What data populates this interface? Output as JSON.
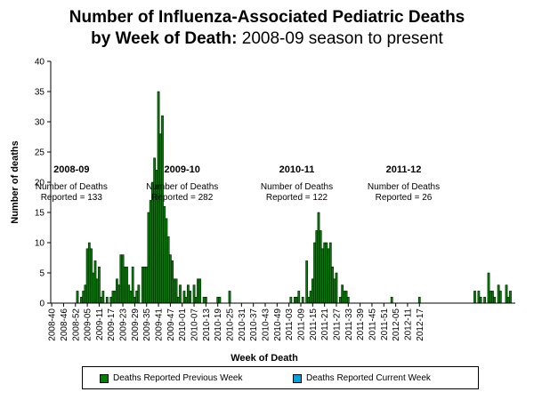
{
  "title": {
    "line1": "Number of Influenza-Associated Pediatric Deaths",
    "line2_bold": "by Week of Death:",
    "line2_rest": "2008-09 season to present"
  },
  "chart_data": {
    "type": "bar",
    "xlabel": "Week of Death",
    "ylabel": "Number of deaths",
    "ylim": [
      0,
      40
    ],
    "yticks": [
      0,
      5,
      10,
      15,
      20,
      25,
      30,
      35,
      40
    ],
    "start_week": "2008-40",
    "tick_labels": [
      "2008-40",
      "2008-46",
      "2008-52",
      "2009-05",
      "2009-11",
      "2009-17",
      "2009-23",
      "2009-29",
      "2009-35",
      "2009-41",
      "2009-47",
      "2010-01",
      "2010-07",
      "2010-13",
      "2010-19",
      "2010-25",
      "2010-31",
      "2010-37",
      "2010-43",
      "2010-49",
      "2011-03",
      "2011-09",
      "2011-15",
      "2011-21",
      "2011-27",
      "2011-33",
      "2011-39",
      "2011-45",
      "2011-51",
      "2012-05",
      "2012-11",
      "2012-17"
    ],
    "series": [
      {
        "name": "Deaths Reported Previous Week",
        "color": "#008000",
        "values": [
          0,
          0,
          0,
          0,
          0,
          0,
          0,
          0,
          0,
          0,
          0,
          0,
          0,
          2,
          0,
          1,
          2,
          3,
          9,
          10,
          9,
          5,
          7,
          4,
          6,
          1,
          2,
          0,
          1,
          0,
          1,
          2,
          2,
          4,
          3,
          8,
          8,
          6,
          6,
          3,
          2,
          6,
          1,
          2,
          3,
          0,
          6,
          6,
          6,
          15,
          17,
          20,
          24,
          22,
          35,
          28,
          31,
          16,
          14,
          11,
          8,
          7,
          4,
          4,
          1,
          3,
          0,
          2,
          1,
          3,
          2,
          0,
          3,
          1,
          4,
          4,
          0,
          1,
          1,
          0,
          0,
          0,
          0,
          0,
          1,
          1,
          0,
          0,
          0,
          0,
          2,
          0,
          0,
          0,
          0,
          0,
          0,
          0,
          0,
          0,
          0,
          0,
          0,
          0,
          0,
          0,
          0,
          0,
          0,
          0,
          0,
          0,
          0,
          0,
          0,
          0,
          0,
          0,
          0,
          0,
          0,
          1,
          0,
          1,
          1,
          2,
          0,
          1,
          0,
          7,
          1,
          2,
          4,
          10,
          12,
          15,
          12,
          9,
          10,
          10,
          9,
          10,
          6,
          4,
          5,
          0,
          1,
          3,
          2,
          2,
          1,
          0,
          0,
          0,
          0,
          0,
          0,
          0,
          0,
          0,
          0,
          0,
          0,
          0,
          0,
          0,
          0,
          0,
          0,
          0,
          0,
          0,
          1,
          0,
          0,
          0,
          0,
          0,
          0,
          0,
          0,
          0,
          0,
          0,
          0,
          0,
          1,
          0,
          0,
          0,
          0,
          0,
          0,
          0,
          0,
          0,
          0,
          0,
          0,
          0,
          0,
          0,
          0,
          0,
          0,
          0,
          0,
          0,
          0,
          0,
          0,
          0,
          0,
          0,
          2,
          0,
          2,
          1,
          0,
          1,
          0,
          5,
          2,
          2,
          1,
          0,
          3,
          2,
          0,
          0,
          3,
          1,
          2,
          0,
          0
        ]
      },
      {
        "name": "Deaths Reported Current Week",
        "color": "#00a0dc",
        "values": []
      }
    ],
    "annotations": [
      {
        "season": "2008-09",
        "line1": "Number of Deaths",
        "line2": "Reported = 133",
        "at_week": 10
      },
      {
        "season": "2009-10",
        "line1": "Number of Deaths",
        "line2": "Reported = 282",
        "at_week": 66
      },
      {
        "season": "2010-11",
        "line1": "Number of Deaths",
        "line2": "Reported = 122",
        "at_week": 124
      },
      {
        "season": "2011-12",
        "line1": "Number of Deaths",
        "line2": "Reported = 26",
        "at_week": 178
      }
    ]
  }
}
